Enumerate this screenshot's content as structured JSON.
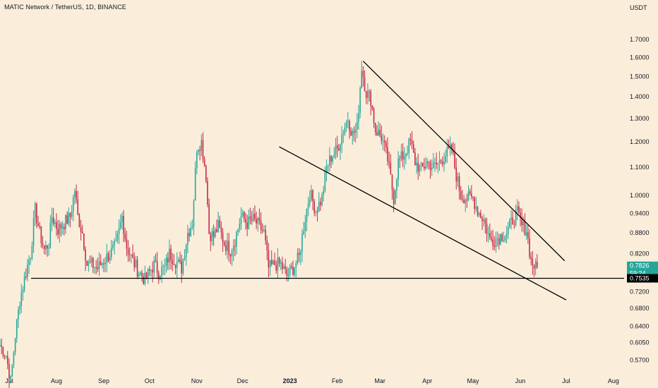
{
  "header": {
    "title": "MATIC Network / TetherUS, 1D, BINANCE"
  },
  "price_axis": {
    "unit": "USDT"
  },
  "colors": {
    "background": "#FAEEDB",
    "up_candle": "#26A69A",
    "down_candle": "#C62A47",
    "line": "#000000",
    "current_tag": "#26A69A",
    "level_tag": "#000000"
  },
  "current_price": {
    "value": "0.7826",
    "countdown": "59:24"
  },
  "support_level": {
    "value": "0.7535"
  },
  "chart_data": {
    "type": "candlestick",
    "title": "MATIC Network / TetherUS, 1D, BINANCE",
    "y_scale": "log",
    "ylim": [
      0.54,
      1.9
    ],
    "y_ticks": [
      "1.7000",
      "1.6000",
      "1.5000",
      "1.4000",
      "1.3000",
      "1.2000",
      "1.1000",
      "1.0000",
      "0.9400",
      "0.8800",
      "0.8200",
      "0.7200",
      "0.6800",
      "0.6400",
      "0.6050",
      "0.5700"
    ],
    "x_ticks": [
      "Jul",
      "Aug",
      "Sep",
      "Oct",
      "Nov",
      "Dec",
      "2023",
      "Feb",
      "Mar",
      "Apr",
      "May",
      "Jun",
      "Jul",
      "Aug"
    ],
    "x_range": [
      "2022-06-25",
      "2023-08-08"
    ],
    "support_line": {
      "price": 0.7535
    },
    "trendlines": [
      {
        "name": "upper",
        "from": [
          "2023-02-18",
          1.58
        ],
        "to": [
          "2023-06-30",
          0.8
        ]
      },
      {
        "name": "lower",
        "from": [
          "2022-12-25",
          1.18
        ],
        "to": [
          "2023-07-01",
          0.7
        ]
      }
    ],
    "anchors": [
      [
        "2022-06-25",
        0.6
      ],
      [
        "2022-06-29",
        0.58
      ],
      [
        "2022-07-02",
        0.53
      ],
      [
        "2022-07-05",
        0.62
      ],
      [
        "2022-07-08",
        0.7
      ],
      [
        "2022-07-12",
        0.77
      ],
      [
        "2022-07-15",
        0.82
      ],
      [
        "2022-07-18",
        0.95
      ],
      [
        "2022-07-21",
        0.88
      ],
      [
        "2022-07-24",
        0.83
      ],
      [
        "2022-07-27",
        0.85
      ],
      [
        "2022-07-29",
        0.93
      ],
      [
        "2022-08-02",
        0.89
      ],
      [
        "2022-08-06",
        0.91
      ],
      [
        "2022-08-10",
        0.93
      ],
      [
        "2022-08-13",
        1.02
      ],
      [
        "2022-08-15",
        0.93
      ],
      [
        "2022-08-18",
        0.88
      ],
      [
        "2022-08-21",
        0.79
      ],
      [
        "2022-08-24",
        0.79
      ],
      [
        "2022-08-28",
        0.78
      ],
      [
        "2022-09-01",
        0.8
      ],
      [
        "2022-09-05",
        0.82
      ],
      [
        "2022-09-09",
        0.84
      ],
      [
        "2022-09-13",
        0.93
      ],
      [
        "2022-09-16",
        0.84
      ],
      [
        "2022-09-20",
        0.8
      ],
      [
        "2022-09-24",
        0.77
      ],
      [
        "2022-09-28",
        0.75
      ],
      [
        "2022-10-01",
        0.77
      ],
      [
        "2022-10-04",
        0.79
      ],
      [
        "2022-10-07",
        0.77
      ],
      [
        "2022-10-11",
        0.78
      ],
      [
        "2022-10-14",
        0.82
      ],
      [
        "2022-10-18",
        0.8
      ],
      [
        "2022-10-22",
        0.78
      ],
      [
        "2022-10-26",
        0.88
      ],
      [
        "2022-10-29",
        0.91
      ],
      [
        "2022-11-01",
        1.18
      ],
      [
        "2022-11-04",
        1.2
      ],
      [
        "2022-11-07",
        1.07
      ],
      [
        "2022-11-09",
        0.88
      ],
      [
        "2022-11-12",
        0.87
      ],
      [
        "2022-11-15",
        0.9
      ],
      [
        "2022-11-19",
        0.85
      ],
      [
        "2022-11-23",
        0.83
      ],
      [
        "2022-11-26",
        0.86
      ],
      [
        "2022-11-30",
        0.93
      ],
      [
        "2022-12-04",
        0.91
      ],
      [
        "2022-12-08",
        0.92
      ],
      [
        "2022-12-12",
        0.9
      ],
      [
        "2022-12-15",
        0.88
      ],
      [
        "2022-12-18",
        0.78
      ],
      [
        "2022-12-22",
        0.79
      ],
      [
        "2022-12-26",
        0.79
      ],
      [
        "2022-12-30",
        0.76
      ],
      [
        "2023-01-03",
        0.78
      ],
      [
        "2023-01-07",
        0.81
      ],
      [
        "2023-01-10",
        0.9
      ],
      [
        "2023-01-14",
        1.01
      ],
      [
        "2023-01-18",
        0.95
      ],
      [
        "2023-01-22",
        0.99
      ],
      [
        "2023-01-25",
        1.1
      ],
      [
        "2023-01-28",
        1.14
      ],
      [
        "2023-02-01",
        1.17
      ],
      [
        "2023-02-05",
        1.25
      ],
      [
        "2023-02-08",
        1.3
      ],
      [
        "2023-02-11",
        1.23
      ],
      [
        "2023-02-14",
        1.26
      ],
      [
        "2023-02-17",
        1.55
      ],
      [
        "2023-02-20",
        1.42
      ],
      [
        "2023-02-23",
        1.39
      ],
      [
        "2023-02-26",
        1.25
      ],
      [
        "2023-03-02",
        1.22
      ],
      [
        "2023-03-06",
        1.13
      ],
      [
        "2023-03-10",
        0.99
      ],
      [
        "2023-03-13",
        1.12
      ],
      [
        "2023-03-17",
        1.15
      ],
      [
        "2023-03-21",
        1.2
      ],
      [
        "2023-03-24",
        1.12
      ],
      [
        "2023-03-28",
        1.09
      ],
      [
        "2023-04-01",
        1.12
      ],
      [
        "2023-04-05",
        1.1
      ],
      [
        "2023-04-09",
        1.12
      ],
      [
        "2023-04-13",
        1.15
      ],
      [
        "2023-04-17",
        1.17
      ],
      [
        "2023-04-20",
        1.07
      ],
      [
        "2023-04-23",
        1.0
      ],
      [
        "2023-04-27",
        0.99
      ],
      [
        "2023-05-01",
        0.99
      ],
      [
        "2023-05-04",
        0.95
      ],
      [
        "2023-05-08",
        0.92
      ],
      [
        "2023-05-12",
        0.86
      ],
      [
        "2023-05-15",
        0.86
      ],
      [
        "2023-05-19",
        0.87
      ],
      [
        "2023-05-23",
        0.88
      ],
      [
        "2023-05-27",
        0.92
      ],
      [
        "2023-05-30",
        0.94
      ],
      [
        "2023-06-02",
        0.9
      ],
      [
        "2023-06-05",
        0.89
      ],
      [
        "2023-06-08",
        0.8
      ],
      [
        "2023-06-11",
        0.78
      ],
      [
        "2023-06-12",
        0.7826
      ]
    ]
  }
}
